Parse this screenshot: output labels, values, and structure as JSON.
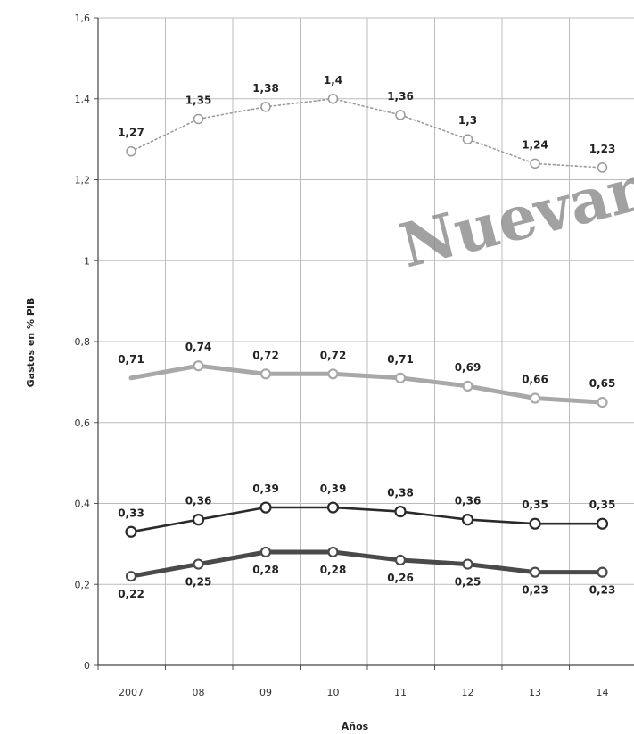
{
  "chart_data": {
    "type": "line",
    "categories": [
      "2007",
      "08",
      "09",
      "10",
      "11",
      "12",
      "13",
      "14"
    ],
    "xlabel": "Años",
    "ylabel": "Gastos en % PIB",
    "ylim": [
      0,
      1.6
    ],
    "yticks": [
      "0",
      "0,2",
      "0,4",
      "0,6",
      "0,8",
      "1",
      "1,2",
      "1,4",
      "1,6"
    ],
    "grid": true,
    "series": [
      {
        "values": [
          1.27,
          1.35,
          1.38,
          1.4,
          1.36,
          1.3,
          1.24,
          1.23
        ],
        "labels": [
          "1,27",
          "1,35",
          "1,38",
          "1,4",
          "1,36",
          "1,3",
          "1,24",
          "1,23"
        ],
        "color": "#9a9a9a",
        "style": "dotted"
      },
      {
        "values": [
          0.71,
          0.74,
          0.72,
          0.72,
          0.71,
          0.69,
          0.66,
          0.65
        ],
        "labels": [
          "0,71",
          "0,74",
          "0,72",
          "0,72",
          "0,71",
          "0,69",
          "0,66",
          "0,65"
        ],
        "color": "#a8a8a8",
        "style": "thick"
      },
      {
        "values": [
          0.33,
          0.36,
          0.39,
          0.39,
          0.38,
          0.36,
          0.35,
          0.35
        ],
        "labels": [
          "0,33",
          "0,36",
          "0,39",
          "0,39",
          "0,38",
          "0,36",
          "0,35",
          "0,35"
        ],
        "color": "#2a2a2a",
        "style": "solid"
      },
      {
        "values": [
          0.22,
          0.25,
          0.28,
          0.28,
          0.26,
          0.25,
          0.23,
          0.23
        ],
        "labels": [
          "0,22",
          "0,25",
          "0,28",
          "0,28",
          "0,26",
          "0,25",
          "0,23",
          "0,23"
        ],
        "color": "#4a4a4a",
        "style": "thick"
      }
    ]
  },
  "watermark": "Nuevare"
}
